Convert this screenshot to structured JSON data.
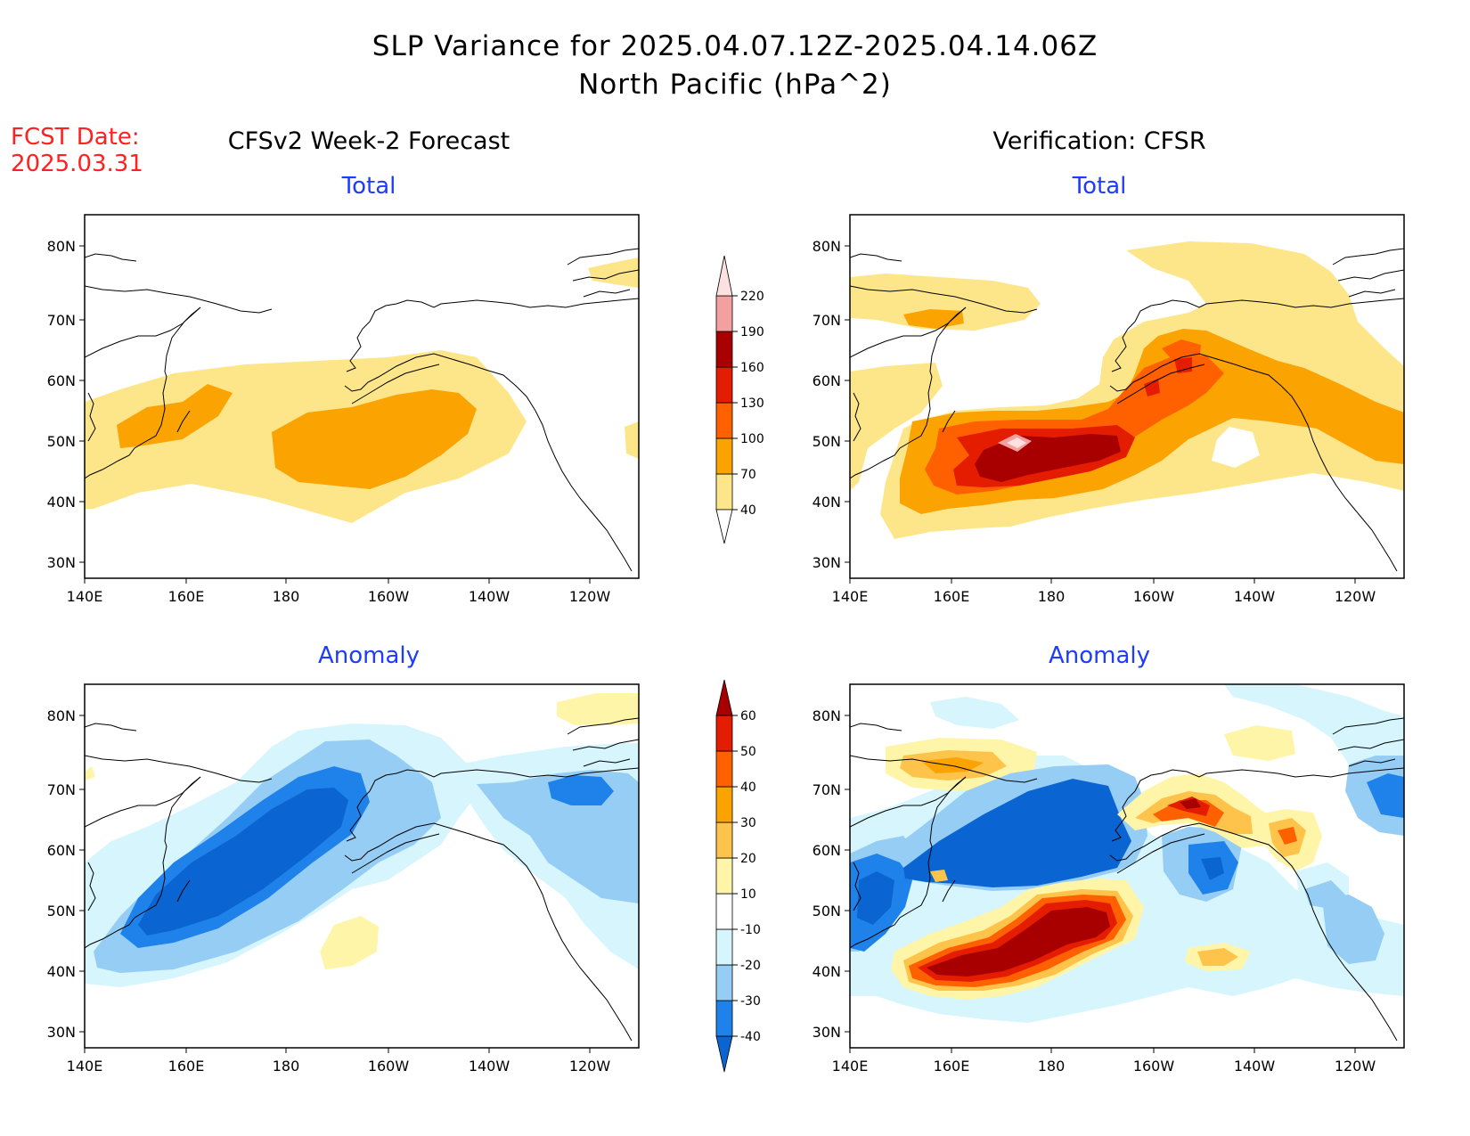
{
  "title": {
    "line1": "SLP Variance for 2025.04.07.12Z-2025.04.14.06Z",
    "line2": "North Pacific (hPa^2)"
  },
  "fcst": {
    "line1": "FCST Date:",
    "line2": "2025.03.31"
  },
  "columns": {
    "left": "CFSv2 Week-2 Forecast",
    "right": "Verification: CFSR"
  },
  "panel_labels": {
    "total": "Total",
    "anomaly": "Anomaly"
  },
  "axes": {
    "lat_labels": [
      "30N",
      "40N",
      "50N",
      "60N",
      "70N",
      "80N"
    ],
    "lon_labels": [
      "140E",
      "160E",
      "180",
      "160W",
      "140W",
      "120W"
    ]
  },
  "colorbar_total": {
    "levels": [
      "40",
      "70",
      "100",
      "130",
      "160",
      "190",
      "220"
    ],
    "colors": [
      "#fde68a",
      "#fba300",
      "#ff6000",
      "#e41c00",
      "#a80000",
      "#f2a0a0",
      "#fde0e0"
    ]
  },
  "colorbar_anomaly": {
    "levels": [
      "-40",
      "-30",
      "-20",
      "-10",
      "10",
      "20",
      "30",
      "40",
      "50",
      "60"
    ],
    "colors": [
      "#0a64d2",
      "#1e82ea",
      "#96cdf5",
      "#d6f5fc",
      "#ffffff",
      "#fff5a8",
      "#fec34a",
      "#fba300",
      "#ff6000",
      "#e41c00",
      "#a80000"
    ]
  }
}
